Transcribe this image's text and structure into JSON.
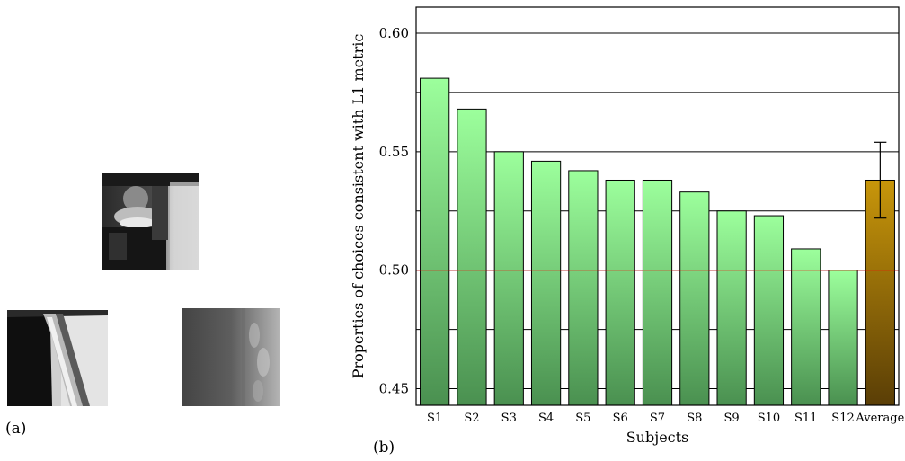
{
  "panels": {
    "a_label": "(a)",
    "b_label": "(b)"
  },
  "images": [
    {
      "name": "patch-top"
    },
    {
      "name": "patch-bottom-left"
    },
    {
      "name": "patch-bottom-right"
    }
  ],
  "colors": {
    "bar": "#7fe08a",
    "average_bar": "#a07a10",
    "reference_line": "#ff0000",
    "grid": "#000000"
  },
  "chart_data": {
    "type": "bar",
    "xlabel": "Subjects",
    "ylabel": "Properties of choices consistent with L1 metric",
    "ylim": [
      0.443,
      0.611
    ],
    "yticks": [
      0.45,
      0.5,
      0.55,
      0.6
    ],
    "ytick_labels": [
      "0.45",
      "0.50",
      "0.55",
      "0.60"
    ],
    "gridlines": [
      0.45,
      0.475,
      0.5,
      0.525,
      0.55,
      0.575,
      0.6
    ],
    "reference_line": 0.5,
    "categories": [
      "S1",
      "S2",
      "S3",
      "S4",
      "S5",
      "S6",
      "S7",
      "S8",
      "S9",
      "S10",
      "S11",
      "S12",
      "Average"
    ],
    "values": [
      0.581,
      0.568,
      0.55,
      0.546,
      0.542,
      0.538,
      0.538,
      0.533,
      0.525,
      0.523,
      0.509,
      0.5,
      0.538
    ],
    "error_bar": {
      "category": "Average",
      "low": 0.522,
      "high": 0.554
    }
  }
}
